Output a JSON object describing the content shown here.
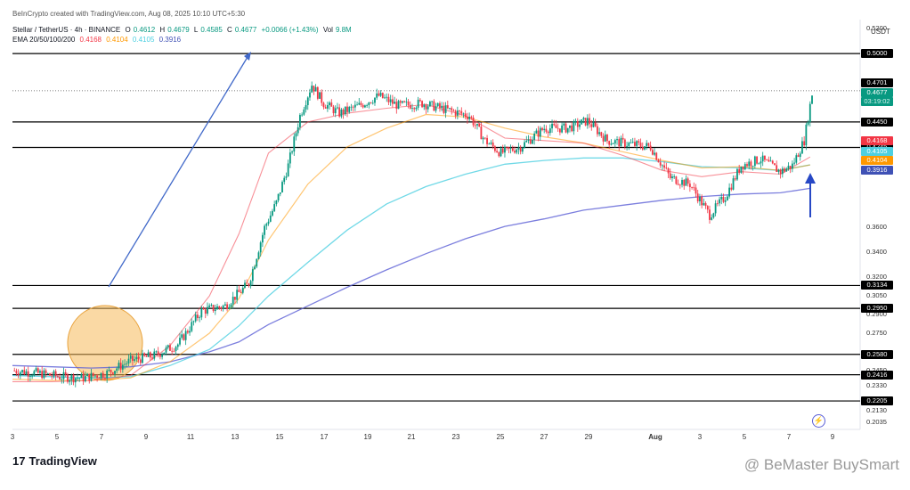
{
  "header": {
    "created": "BeInCrypto created with TradingView.com, Aug 08, 2025 10:10 UTC+5:30",
    "symbol": "Stellar / TetherUS · 4h · BINANCE",
    "o_label": "O",
    "o_val": "0.4612",
    "h_label": "H",
    "h_val": "0.4679",
    "l_label": "L",
    "l_val": "0.4585",
    "c_label": "C",
    "c_val": "0.4677",
    "change": "+0.0066 (+1.43%)",
    "vol_label": "Vol",
    "vol_val": "9.8M",
    "ema_label": "EMA 20/50/100/200",
    "ema20": "0.4168",
    "ema50": "0.4104",
    "ema100": "0.4105",
    "ema200": "0.3916"
  },
  "axis": {
    "currency": "USDT"
  },
  "brand": {
    "name": "TradingView",
    "logo": "17"
  },
  "watermark": "@ BeMaster BuySmart",
  "colors": {
    "up": "#089981",
    "down": "#f23645",
    "ema20": "#f23645",
    "ema50": "#ff9800",
    "ema100": "#4dd0e1",
    "ema200": "#5b5fd6",
    "arrow": "#4169c9",
    "circle": "#f5b95a"
  },
  "chart_data": {
    "type": "candlestick",
    "timeframe": "4h",
    "x_ticks": [
      "3",
      "5",
      "7",
      "9",
      "11",
      "13",
      "15",
      "17",
      "19",
      "21",
      "23",
      "25",
      "27",
      "29",
      "Aug",
      "3",
      "5",
      "7",
      "9"
    ],
    "y_ticks": [
      "0.5200",
      "0.3600",
      "0.3400",
      "0.3200",
      "0.3050",
      "0.2900",
      "0.2750",
      "0.2450",
      "0.2330",
      "0.2130",
      "0.2035"
    ],
    "price_levels": [
      {
        "value": "0.5000"
      },
      {
        "value": "0.4450"
      },
      {
        "value": "0.4245"
      },
      {
        "value": "0.3134"
      },
      {
        "value": "0.2950"
      },
      {
        "value": "0.2580"
      },
      {
        "value": "0.2416"
      },
      {
        "value": "0.2205"
      }
    ],
    "tags": {
      "high": "0.4701",
      "last": "0.4677",
      "countdown": "03:19:02",
      "ema20": "0.4168",
      "ema50": "0.4104",
      "ema100": "0.4105",
      "ema200": "0.3916"
    },
    "ema200_path": [
      [
        0,
        0.249
      ],
      [
        20,
        0.248
      ],
      [
        40,
        0.247
      ],
      [
        60,
        0.248
      ],
      [
        80,
        0.252
      ],
      [
        100,
        0.26
      ],
      [
        115,
        0.268
      ],
      [
        130,
        0.282
      ],
      [
        150,
        0.297
      ],
      [
        170,
        0.312
      ],
      [
        190,
        0.326
      ],
      [
        210,
        0.339
      ],
      [
        230,
        0.351
      ],
      [
        250,
        0.361
      ],
      [
        270,
        0.367
      ],
      [
        290,
        0.374
      ],
      [
        310,
        0.378
      ],
      [
        330,
        0.382
      ],
      [
        350,
        0.385
      ],
      [
        370,
        0.387
      ],
      [
        390,
        0.388
      ],
      [
        405,
        0.3916
      ]
    ],
    "ema100_path": [
      [
        0,
        0.241
      ],
      [
        20,
        0.24
      ],
      [
        40,
        0.239
      ],
      [
        60,
        0.24
      ],
      [
        80,
        0.249
      ],
      [
        100,
        0.262
      ],
      [
        115,
        0.281
      ],
      [
        130,
        0.305
      ],
      [
        150,
        0.332
      ],
      [
        170,
        0.358
      ],
      [
        190,
        0.379
      ],
      [
        210,
        0.393
      ],
      [
        230,
        0.403
      ],
      [
        250,
        0.411
      ],
      [
        270,
        0.414
      ],
      [
        290,
        0.416
      ],
      [
        310,
        0.416
      ],
      [
        330,
        0.413
      ],
      [
        350,
        0.409
      ],
      [
        370,
        0.408
      ],
      [
        390,
        0.406
      ],
      [
        405,
        0.4105
      ]
    ],
    "ema50_path": [
      [
        0,
        0.238
      ],
      [
        20,
        0.237
      ],
      [
        40,
        0.237
      ],
      [
        60,
        0.239
      ],
      [
        80,
        0.252
      ],
      [
        100,
        0.275
      ],
      [
        115,
        0.303
      ],
      [
        130,
        0.35
      ],
      [
        150,
        0.395
      ],
      [
        170,
        0.425
      ],
      [
        190,
        0.44
      ],
      [
        210,
        0.451
      ],
      [
        230,
        0.449
      ],
      [
        250,
        0.44
      ],
      [
        270,
        0.433
      ],
      [
        290,
        0.428
      ],
      [
        310,
        0.421
      ],
      [
        330,
        0.414
      ],
      [
        350,
        0.408
      ],
      [
        370,
        0.409
      ],
      [
        390,
        0.406
      ],
      [
        405,
        0.4104
      ]
    ],
    "ema20_path": [
      [
        0,
        0.236
      ],
      [
        20,
        0.236
      ],
      [
        40,
        0.237
      ],
      [
        60,
        0.241
      ],
      [
        80,
        0.265
      ],
      [
        100,
        0.305
      ],
      [
        115,
        0.355
      ],
      [
        130,
        0.42
      ],
      [
        150,
        0.445
      ],
      [
        170,
        0.452
      ],
      [
        190,
        0.456
      ],
      [
        210,
        0.459
      ],
      [
        230,
        0.45
      ],
      [
        250,
        0.432
      ],
      [
        270,
        0.43
      ],
      [
        290,
        0.428
      ],
      [
        310,
        0.418
      ],
      [
        330,
        0.406
      ],
      [
        350,
        0.401
      ],
      [
        370,
        0.405
      ],
      [
        390,
        0.403
      ],
      [
        405,
        0.4168
      ]
    ],
    "close_path": [
      [
        0,
        0.245
      ],
      [
        12,
        0.243
      ],
      [
        24,
        0.24
      ],
      [
        36,
        0.239
      ],
      [
        48,
        0.243
      ],
      [
        60,
        0.253
      ],
      [
        72,
        0.257
      ],
      [
        84,
        0.266
      ],
      [
        96,
        0.293
      ],
      [
        108,
        0.297
      ],
      [
        120,
        0.315
      ],
      [
        128,
        0.36
      ],
      [
        134,
        0.38
      ],
      [
        140,
        0.41
      ],
      [
        146,
        0.45
      ],
      [
        152,
        0.475
      ],
      [
        158,
        0.46
      ],
      [
        166,
        0.452
      ],
      [
        176,
        0.458
      ],
      [
        186,
        0.466
      ],
      [
        196,
        0.458
      ],
      [
        208,
        0.46
      ],
      [
        220,
        0.455
      ],
      [
        232,
        0.45
      ],
      [
        240,
        0.43
      ],
      [
        248,
        0.42
      ],
      [
        258,
        0.425
      ],
      [
        270,
        0.44
      ],
      [
        282,
        0.44
      ],
      [
        292,
        0.446
      ],
      [
        302,
        0.43
      ],
      [
        314,
        0.427
      ],
      [
        324,
        0.425
      ],
      [
        334,
        0.4
      ],
      [
        344,
        0.395
      ],
      [
        354,
        0.37
      ],
      [
        362,
        0.385
      ],
      [
        370,
        0.41
      ],
      [
        380,
        0.415
      ],
      [
        390,
        0.405
      ],
      [
        396,
        0.41
      ],
      [
        402,
        0.43
      ],
      [
        406,
        0.4677
      ]
    ]
  }
}
